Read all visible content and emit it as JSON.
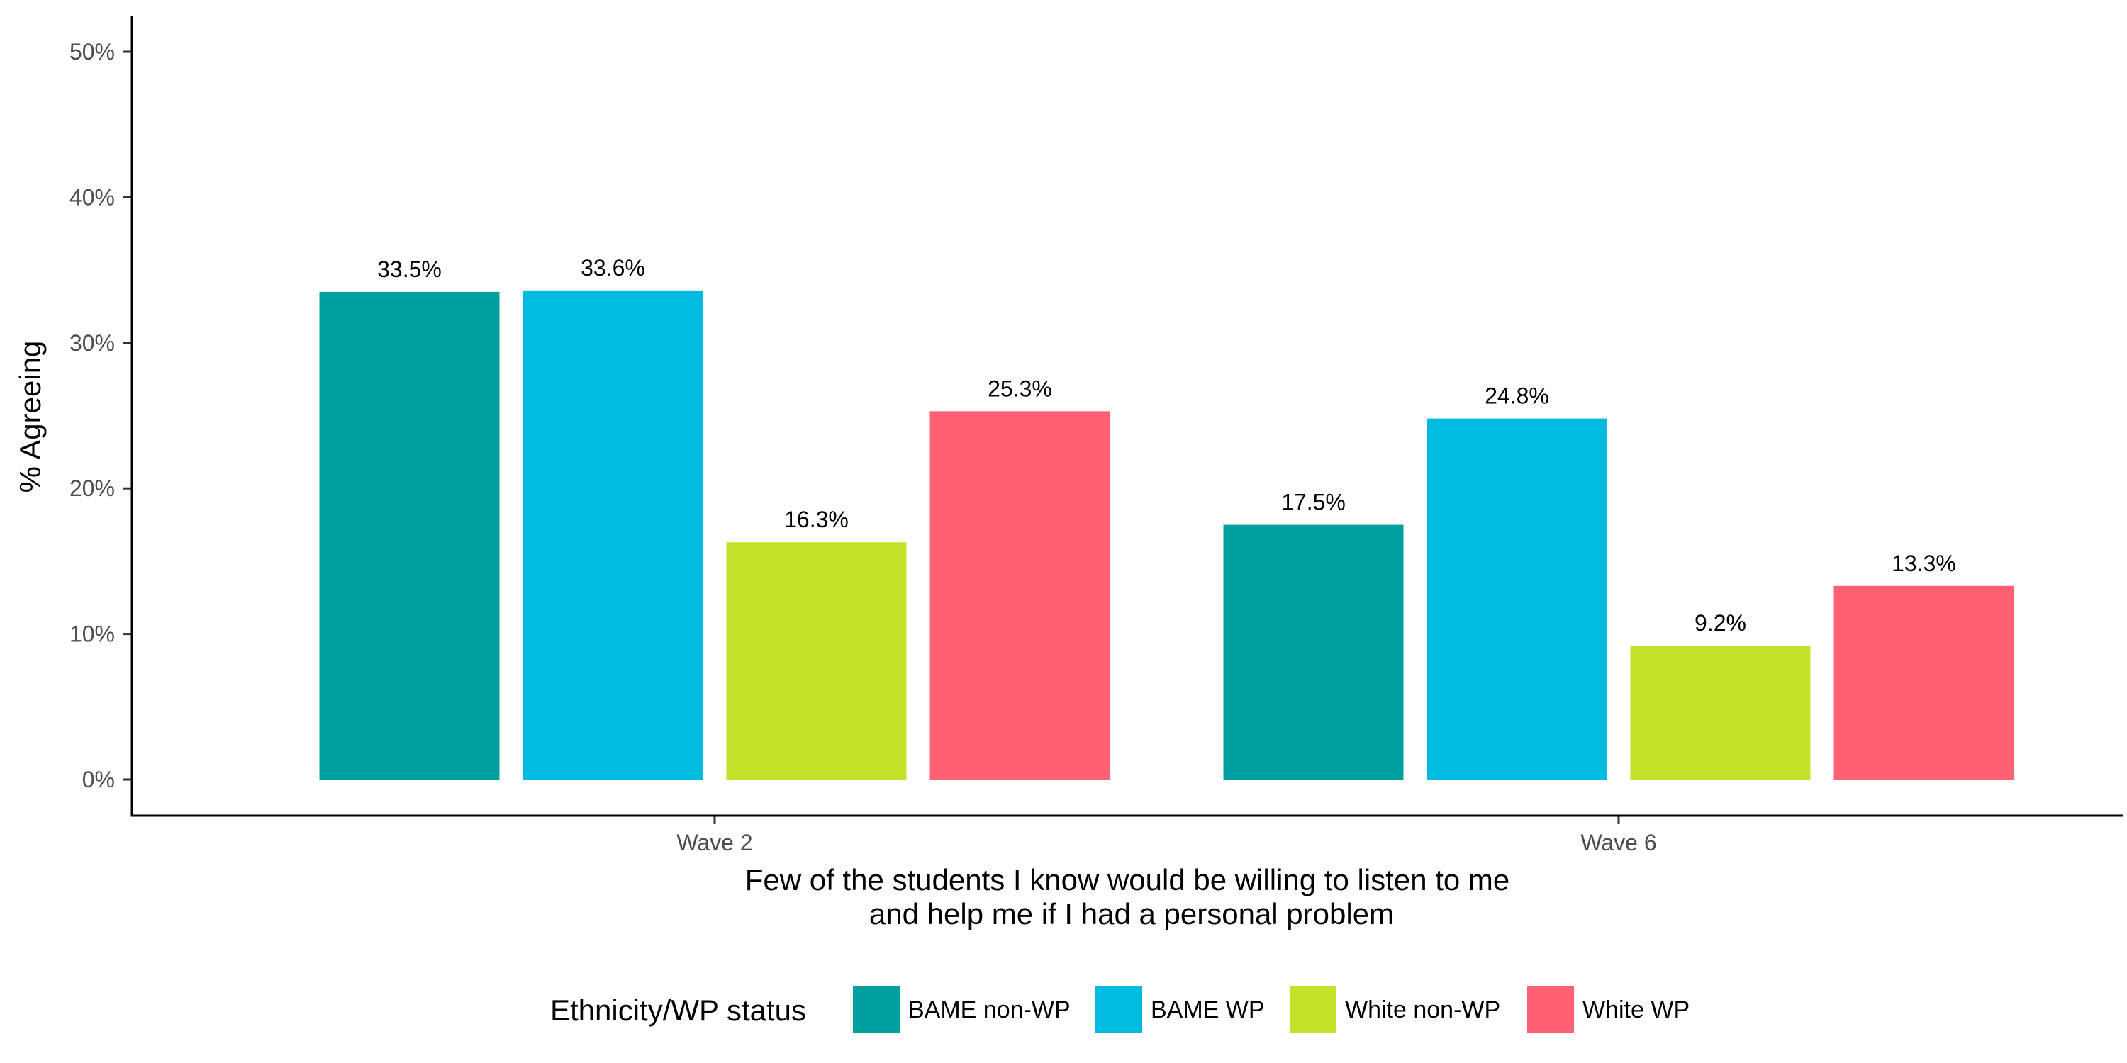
{
  "chart_data": {
    "type": "bar",
    "categories": [
      "Wave 2",
      "Wave 6"
    ],
    "series": [
      {
        "name": "BAME non-WP",
        "color": "#00A0A0",
        "values": [
          33.5,
          17.5
        ],
        "labels": [
          "33.5%",
          "17.5%"
        ]
      },
      {
        "name": "BAME WP",
        "color": "#00BAE0",
        "values": [
          33.6,
          24.8
        ],
        "labels": [
          "33.6%",
          "24.8%"
        ]
      },
      {
        "name": "White non-WP",
        "color": "#C6E12A",
        "values": [
          16.3,
          9.2
        ],
        "labels": [
          "16.3%",
          "9.2%"
        ]
      },
      {
        "name": "White WP",
        "color": "#FE6074",
        "values": [
          25.3,
          13.3
        ],
        "labels": [
          "25.3%",
          "13.3%"
        ]
      }
    ],
    "xlabel_lines": [
      "Few of the students I know would be willing to listen to me",
      "and help me if I had a personal problem"
    ],
    "ylabel": "% Agreeing",
    "ylim": [
      0,
      52
    ],
    "yticks": [
      0,
      10,
      20,
      30,
      40,
      50
    ],
    "ytick_labels": [
      "0%",
      "10%",
      "20%",
      "30%",
      "40%",
      "50%"
    ],
    "legend_title": "Ethnicity/WP status",
    "legend_position": "bottom",
    "grid": false
  }
}
